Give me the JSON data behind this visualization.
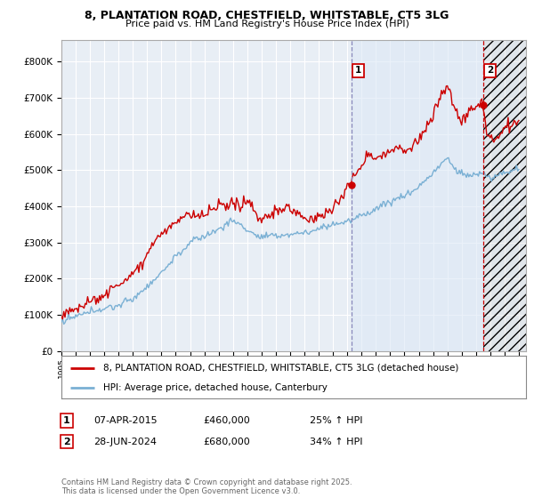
{
  "title_line1": "8, PLANTATION ROAD, CHESTFIELD, WHITSTABLE, CT5 3LG",
  "title_line2": "Price paid vs. HM Land Registry's House Price Index (HPI)",
  "background_color": "#ffffff",
  "plot_bg_color": "#e8eef5",
  "grid_color": "#ffffff",
  "line1_color": "#cc0000",
  "line2_color": "#7ab0d4",
  "vline1_color": "#8888cc",
  "vline2_color": "#cc0000",
  "annotation1": {
    "label": "1",
    "date_str": "07-APR-2015",
    "price": 460000,
    "hpi_pct": "25% ↑ HPI"
  },
  "annotation2": {
    "label": "2",
    "date_str": "28-JUN-2024",
    "price": 680000,
    "hpi_pct": "34% ↑ HPI"
  },
  "legend1": "8, PLANTATION ROAD, CHESTFIELD, WHITSTABLE, CT5 3LG (detached house)",
  "legend2": "HPI: Average price, detached house, Canterbury",
  "footnote": "Contains HM Land Registry data © Crown copyright and database right 2025.\nThis data is licensed under the Open Government Licence v3.0.",
  "xmin": 1995.0,
  "xmax": 2027.5,
  "ymin": 0,
  "ymax": 860000,
  "yticks": [
    0,
    100000,
    200000,
    300000,
    400000,
    500000,
    600000,
    700000,
    800000
  ],
  "ytick_labels": [
    "£0",
    "£100K",
    "£200K",
    "£300K",
    "£400K",
    "£500K",
    "£600K",
    "£700K",
    "£800K"
  ],
  "xticks": [
    1995,
    1996,
    1997,
    1998,
    1999,
    2000,
    2001,
    2002,
    2003,
    2004,
    2005,
    2006,
    2007,
    2008,
    2009,
    2010,
    2011,
    2012,
    2013,
    2014,
    2015,
    2016,
    2017,
    2018,
    2019,
    2020,
    2021,
    2022,
    2023,
    2024,
    2025,
    2026,
    2027
  ],
  "vline1_x": 2015.27,
  "vline2_x": 2024.49,
  "marker1_price": 460000,
  "marker2_price": 680000,
  "marker2_hpi": 507000
}
